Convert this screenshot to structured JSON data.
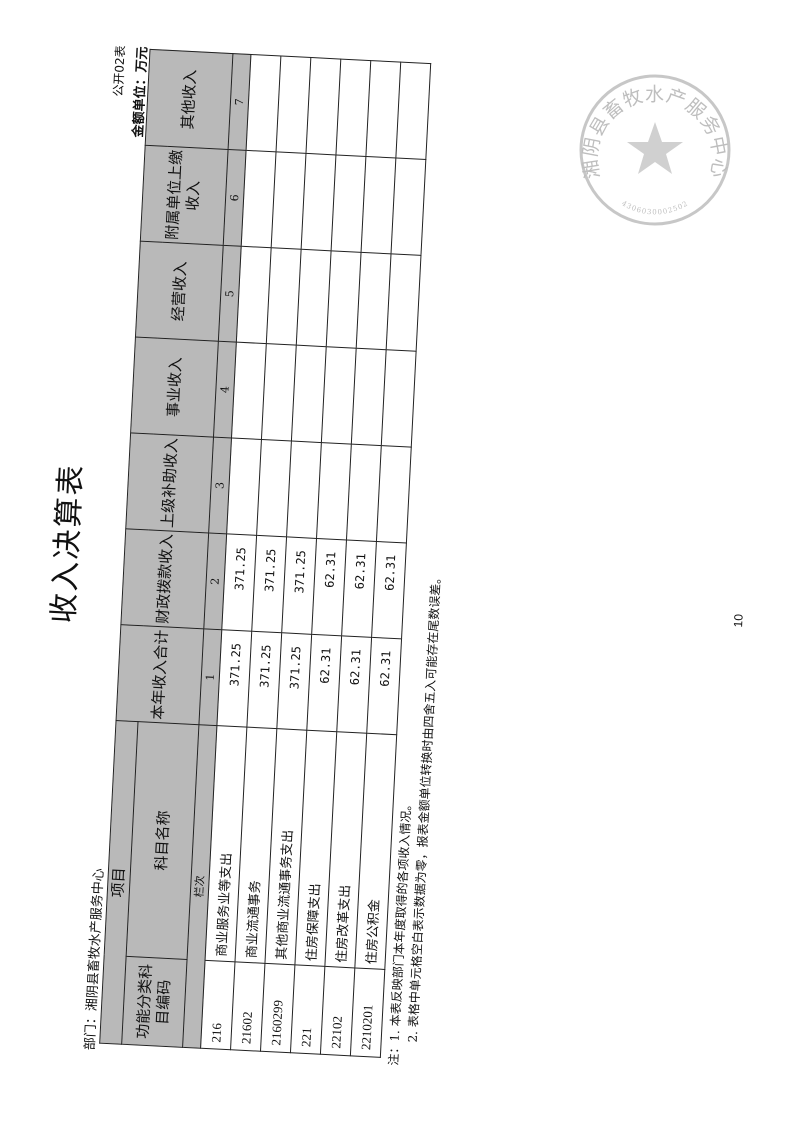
{
  "title": "收入决算表",
  "department": "部门：湘阴县畜牧水产服务中心",
  "form_no": "公开02表",
  "unit": "金额单位：万元",
  "table": {
    "header_group": "项目",
    "col_code": "功能分类科目编码",
    "col_name": "科目名称",
    "row_index_label": "栏次",
    "columns": [
      {
        "label": "本年收入合计",
        "index": "1"
      },
      {
        "label": "财政拨款收入",
        "index": "2"
      },
      {
        "label": "上级补助收入",
        "index": "3"
      },
      {
        "label": "事业收入",
        "index": "4"
      },
      {
        "label": "经营收入",
        "index": "5"
      },
      {
        "label": "附属单位上缴收入",
        "index": "6"
      },
      {
        "label": "其他收入",
        "index": "7"
      }
    ],
    "rows": [
      {
        "code": "216",
        "name": "商业服务业等支出",
        "values": [
          "371.25",
          "371.25",
          "",
          "",
          "",
          "",
          ""
        ]
      },
      {
        "code": "21602",
        "name": "商业流通事务",
        "values": [
          "371.25",
          "371.25",
          "",
          "",
          "",
          "",
          ""
        ]
      },
      {
        "code": "2160299",
        "name": "其他商业流通事务支出",
        "values": [
          "371.25",
          "371.25",
          "",
          "",
          "",
          "",
          ""
        ]
      },
      {
        "code": "221",
        "name": "住房保障支出",
        "values": [
          "62.31",
          "62.31",
          "",
          "",
          "",
          "",
          ""
        ]
      },
      {
        "code": "22102",
        "name": "住房改革支出",
        "values": [
          "62.31",
          "62.31",
          "",
          "",
          "",
          "",
          ""
        ]
      },
      {
        "code": "2210201",
        "name": "住房公积金",
        "values": [
          "62.31",
          "62.31",
          "",
          "",
          "",
          "",
          ""
        ]
      }
    ]
  },
  "notes": [
    "注：1. 本表反映部门本年度取得的各项收入情况。",
    "2. 表格中单元格空白表示数据为零，报表金额单位转换时由四舍五入可能存在尾数误差。"
  ],
  "page_number": "10",
  "stamp": {
    "text": "湘阴县畜牧水产服务中心",
    "number": "4306030002502",
    "color": "#9a9a9a"
  }
}
